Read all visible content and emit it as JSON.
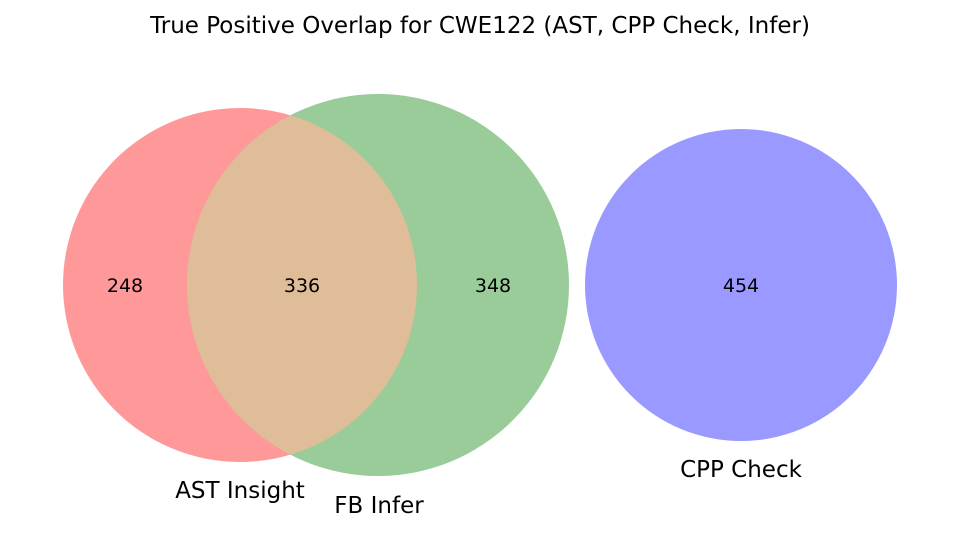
{
  "title": "True Positive Overlap for CWE122 (AST, CPP Check, Infer)",
  "sets": {
    "ast": {
      "label": "AST Insight",
      "color": "#ff9999"
    },
    "infer": {
      "label": "FB Infer",
      "color": "#99cc99"
    },
    "cpp": {
      "label": "CPP Check",
      "color": "#9999ff"
    },
    "overlap_color": "#e0bd99"
  },
  "counts": {
    "ast_only": "248",
    "ast_infer": "336",
    "infer_only": "348",
    "cpp_only": "454"
  }
}
